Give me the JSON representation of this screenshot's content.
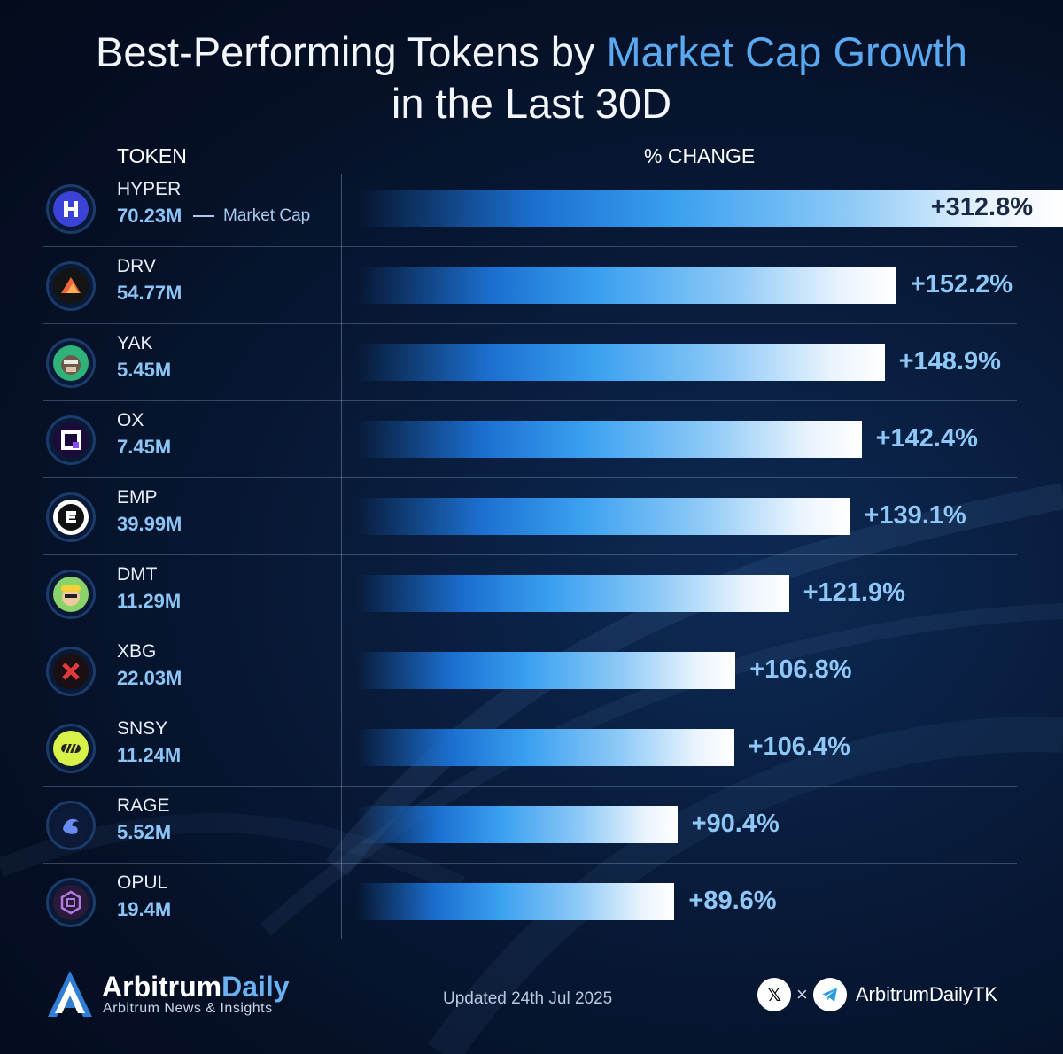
{
  "title": {
    "part1": "Best-Performing Tokens by ",
    "accent": "Market Cap Growth",
    "line2": "in the Last 30D"
  },
  "columns": {
    "token": "TOKEN",
    "change": "% CHANGE"
  },
  "market_cap_note": "Market Cap",
  "tokens": [
    {
      "symbol": "HYPER",
      "market_cap": "70.23M",
      "change_label": "+312.8%",
      "icon": "hyper-logo-icon"
    },
    {
      "symbol": "DRV",
      "market_cap": "54.77M",
      "change_label": "+152.2%",
      "icon": "drv-logo-icon"
    },
    {
      "symbol": "YAK",
      "market_cap": "5.45M",
      "change_label": "+148.9%",
      "icon": "yak-logo-icon"
    },
    {
      "symbol": "OX",
      "market_cap": "7.45M",
      "change_label": "+142.4%",
      "icon": "ox-logo-icon"
    },
    {
      "symbol": "EMP",
      "market_cap": "39.99M",
      "change_label": "+139.1%",
      "icon": "emp-logo-icon"
    },
    {
      "symbol": "DMT",
      "market_cap": "11.29M",
      "change_label": "+121.9%",
      "icon": "dmt-logo-icon"
    },
    {
      "symbol": "XBG",
      "market_cap": "22.03M",
      "change_label": "+106.8%",
      "icon": "xbg-logo-icon"
    },
    {
      "symbol": "SNSY",
      "market_cap": "11.24M",
      "change_label": "+106.4%",
      "icon": "snsy-logo-icon"
    },
    {
      "symbol": "RAGE",
      "market_cap": "5.52M",
      "change_label": "+90.4%",
      "icon": "rage-logo-icon"
    },
    {
      "symbol": "OPUL",
      "market_cap": "19.4M",
      "change_label": "+89.6%",
      "icon": "opul-logo-icon"
    }
  ],
  "chart_data": {
    "type": "bar",
    "orientation": "horizontal",
    "title": "Best-Performing Tokens by Market Cap Growth in the Last 30D",
    "categories": [
      "HYPER",
      "DRV",
      "YAK",
      "OX",
      "EMP",
      "DMT",
      "XBG",
      "SNSY",
      "RAGE",
      "OPUL"
    ],
    "values": [
      312.8,
      152.2,
      148.9,
      142.4,
      139.1,
      121.9,
      106.8,
      106.4,
      90.4,
      89.6
    ],
    "market_caps": [
      "70.23M",
      "54.77M",
      "5.45M",
      "7.45M",
      "39.99M",
      "11.29M",
      "22.03M",
      "11.24M",
      "5.52M",
      "19.4M"
    ],
    "xlabel": "% CHANGE",
    "ylabel": "TOKEN",
    "grid": false,
    "legend": "none"
  },
  "footer": {
    "brand_part1": "Arbitrum",
    "brand_part2": "Daily",
    "tagline": "Arbitrum News & Insights",
    "updated": "Updated 24th Jul 2025",
    "x_symbol": "𝕏",
    "separator": "×",
    "handle": "ArbitrumDailyTK"
  },
  "colors": {
    "background": "#061430",
    "accent": "#5aa9f0",
    "bar_start": "#1b6fcf",
    "bar_end": "#ffffff",
    "value_label": "#8fc8f7"
  }
}
